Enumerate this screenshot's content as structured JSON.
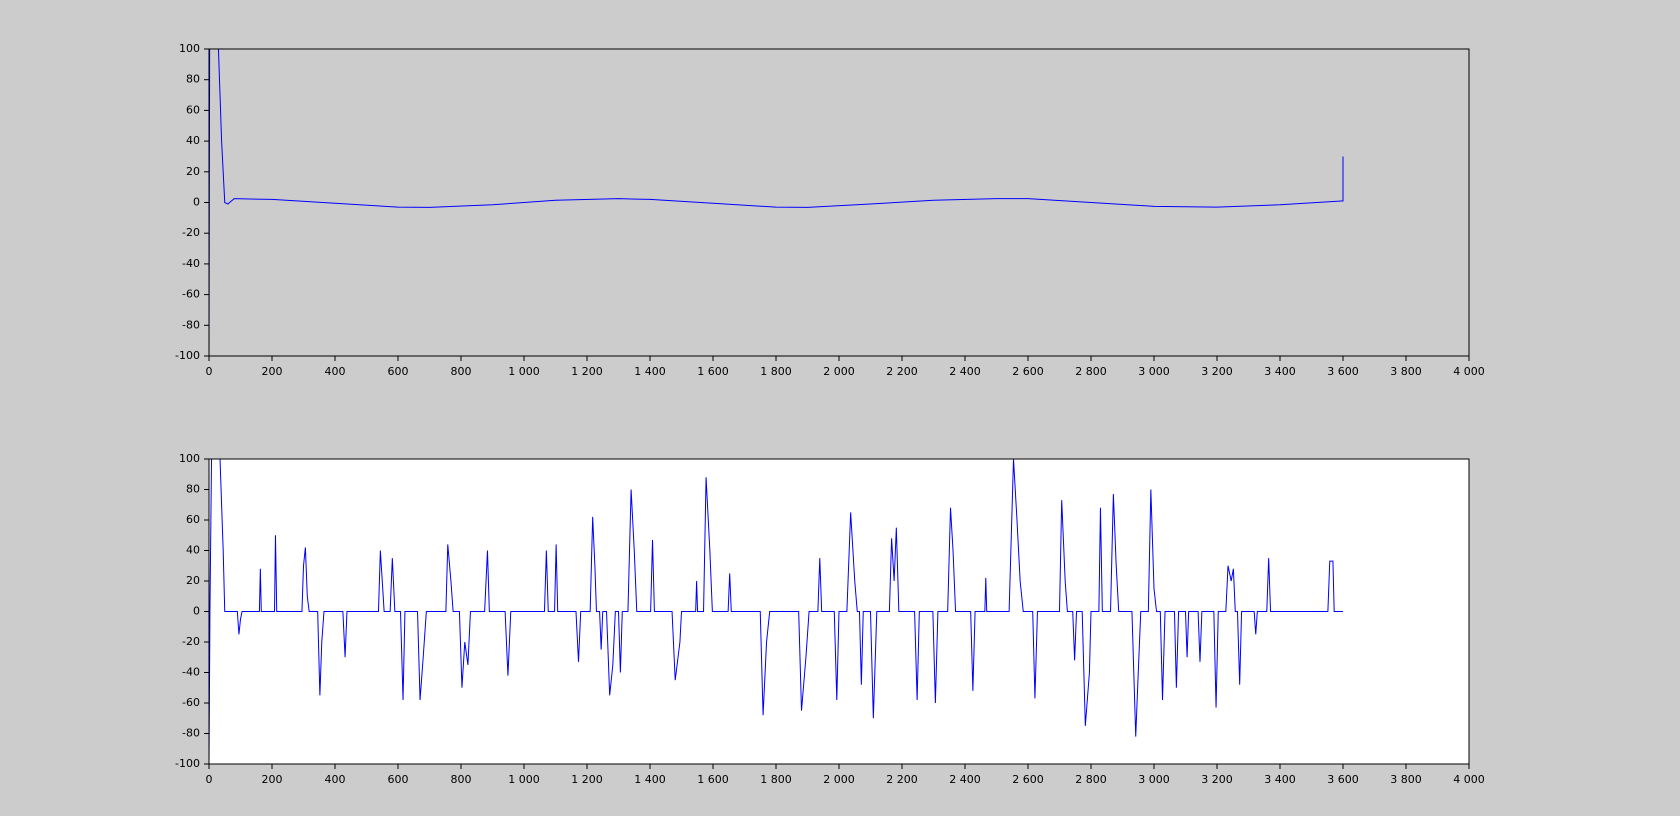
{
  "chart_data": [
    {
      "type": "line",
      "color": "#0000ff",
      "background": "#cccccc",
      "x": [
        0,
        2,
        30,
        40,
        50,
        60,
        80,
        200,
        400,
        600,
        700,
        900,
        1100,
        1300,
        1400,
        1600,
        1800,
        1900,
        2100,
        2300,
        2500,
        2600,
        2800,
        3000,
        3200,
        3400,
        3595,
        3600,
        3600
      ],
      "values": [
        -100,
        100,
        100,
        40,
        0,
        -1,
        2.5,
        2,
        -0.5,
        -3,
        -3.2,
        -1.5,
        1.5,
        2.5,
        2,
        -0.5,
        -3,
        -3.2,
        -1,
        1.5,
        2.5,
        2.5,
        0,
        -2.5,
        -3,
        -1.5,
        1,
        1,
        30
      ],
      "xlim": [
        0,
        4000
      ],
      "xticks": [
        0,
        200,
        400,
        600,
        800,
        {
          "value": 1000,
          "label": "1 000"
        },
        {
          "value": 1200,
          "label": "1 200"
        },
        {
          "value": 1400,
          "label": "1 400"
        },
        {
          "value": 1600,
          "label": "1 600"
        },
        {
          "value": 1800,
          "label": "1 800"
        },
        {
          "value": 2000,
          "label": "2 000"
        },
        {
          "value": 2200,
          "label": "2 200"
        },
        {
          "value": 2400,
          "label": "2 400"
        },
        {
          "value": 2600,
          "label": "2 600"
        },
        {
          "value": 2800,
          "label": "2 800"
        },
        {
          "value": 3000,
          "label": "3 000"
        },
        {
          "value": 3200,
          "label": "3 200"
        },
        {
          "value": 3400,
          "label": "3 400"
        },
        {
          "value": 3600,
          "label": "3 600"
        },
        {
          "value": 3800,
          "label": "3 800"
        },
        {
          "value": 4000,
          "label": "4 000"
        }
      ],
      "ylim": [
        -100,
        100
      ],
      "yticks": [
        -100,
        -80,
        -60,
        -40,
        -20,
        0,
        20,
        40,
        60,
        80,
        100
      ]
    },
    {
      "type": "line",
      "color": "#0000ff",
      "background": "#ffffff",
      "x": [
        0,
        3,
        8,
        35,
        45,
        50,
        90,
        95,
        100,
        105,
        160,
        163,
        166,
        208,
        211,
        215,
        295,
        300,
        306,
        312,
        318,
        345,
        352,
        358,
        365,
        425,
        432,
        438,
        538,
        544,
        550,
        556,
        575,
        582,
        590,
        608,
        616,
        622,
        662,
        670,
        680,
        690,
        752,
        758,
        768,
        775,
        795,
        803,
        812,
        822,
        830,
        875,
        884,
        890,
        940,
        949,
        958,
        1065,
        1071,
        1077,
        1097,
        1102,
        1107,
        1165,
        1173,
        1180,
        1210,
        1218,
        1225,
        1230,
        1240,
        1245,
        1250,
        1262,
        1272,
        1282,
        1290,
        1300,
        1306,
        1312,
        1330,
        1340,
        1350,
        1358,
        1402,
        1408,
        1414,
        1470,
        1480,
        1495,
        1500,
        1545,
        1548,
        1551,
        1570,
        1578,
        1590,
        1598,
        1648,
        1653,
        1658,
        1750,
        1759,
        1770,
        1780,
        1872,
        1881,
        1895,
        1905,
        1933,
        1939,
        1945,
        1985,
        1993,
        2000,
        2025,
        2037,
        2050,
        2058,
        2065,
        2071,
        2077,
        2100,
        2109,
        2120,
        2160,
        2167,
        2175,
        2182,
        2190,
        2240,
        2248,
        2255,
        2298,
        2306,
        2314,
        2345,
        2354,
        2362,
        2370,
        2418,
        2425,
        2432,
        2463,
        2466,
        2469,
        2540,
        2554,
        2565,
        2575,
        2585,
        2615,
        2622,
        2630,
        2700,
        2707,
        2718,
        2725,
        2742,
        2748,
        2754,
        2772,
        2782,
        2795,
        2800,
        2825,
        2830,
        2836,
        2862,
        2871,
        2880,
        2888,
        2930,
        2942,
        2950,
        2958,
        2982,
        2990,
        3000,
        3008,
        3020,
        3027,
        3035,
        3065,
        3071,
        3078,
        3100,
        3105,
        3110,
        3140,
        3146,
        3152,
        3190,
        3197,
        3204,
        3228,
        3235,
        3245,
        3252,
        3258,
        3265,
        3272,
        3278,
        3318,
        3323,
        3328,
        3358,
        3364,
        3370,
        3552,
        3558,
        3568,
        3572,
        3600
      ],
      "values": [
        -100,
        0,
        100,
        100,
        40,
        0,
        0,
        -15,
        -5,
        0,
        0,
        28,
        0,
        0,
        50,
        0,
        0,
        30,
        42,
        10,
        0,
        0,
        -55,
        -20,
        0,
        0,
        -30,
        0,
        0,
        40,
        20,
        0,
        0,
        35,
        0,
        0,
        -58,
        0,
        0,
        -58,
        -30,
        0,
        0,
        44,
        20,
        0,
        0,
        -50,
        -20,
        -35,
        0,
        0,
        40,
        0,
        0,
        -42,
        0,
        0,
        40,
        0,
        0,
        44,
        0,
        0,
        -33,
        0,
        0,
        62,
        30,
        0,
        0,
        -25,
        0,
        0,
        -55,
        -35,
        0,
        0,
        -40,
        0,
        0,
        80,
        40,
        0,
        0,
        47,
        0,
        0,
        -45,
        -20,
        0,
        0,
        20,
        0,
        0,
        88,
        40,
        0,
        0,
        25,
        0,
        0,
        -68,
        -20,
        0,
        0,
        -65,
        -30,
        0,
        0,
        35,
        0,
        0,
        -58,
        0,
        0,
        65,
        20,
        0,
        0,
        -48,
        0,
        0,
        -70,
        0,
        0,
        48,
        20,
        55,
        0,
        0,
        -58,
        0,
        0,
        -60,
        0,
        0,
        68,
        40,
        0,
        0,
        -52,
        0,
        0,
        22,
        0,
        0,
        100,
        60,
        20,
        0,
        0,
        -57,
        0,
        0,
        73,
        20,
        0,
        0,
        -32,
        0,
        0,
        -75,
        -40,
        0,
        0,
        68,
        0,
        0,
        77,
        30,
        0,
        0,
        -82,
        -40,
        0,
        0,
        80,
        15,
        0,
        0,
        -58,
        0,
        0,
        -50,
        0,
        0,
        -30,
        0,
        0,
        -33,
        0,
        0,
        -63,
        0,
        0,
        30,
        20,
        28,
        0,
        0,
        -48,
        0,
        0,
        -15,
        0,
        0,
        35,
        0,
        0,
        33,
        33,
        0,
        0
      ],
      "xlim": [
        0,
        4000
      ],
      "xticks": [
        0,
        200,
        400,
        600,
        800,
        {
          "value": 1000,
          "label": "1 000"
        },
        {
          "value": 1200,
          "label": "1 200"
        },
        {
          "value": 1400,
          "label": "1 400"
        },
        {
          "value": 1600,
          "label": "1 600"
        },
        {
          "value": 1800,
          "label": "1 800"
        },
        {
          "value": 2000,
          "label": "2 000"
        },
        {
          "value": 2200,
          "label": "2 200"
        },
        {
          "value": 2400,
          "label": "2 400"
        },
        {
          "value": 2600,
          "label": "2 600"
        },
        {
          "value": 2800,
          "label": "2 800"
        },
        {
          "value": 3000,
          "label": "3 000"
        },
        {
          "value": 3200,
          "label": "3 200"
        },
        {
          "value": 3400,
          "label": "3 400"
        },
        {
          "value": 3600,
          "label": "3 600"
        },
        {
          "value": 3800,
          "label": "3 800"
        },
        {
          "value": 4000,
          "label": "4 000"
        }
      ],
      "ylim": [
        -100,
        100
      ],
      "yticks": [
        -100,
        -80,
        -60,
        -40,
        -20,
        0,
        20,
        40,
        60,
        80,
        100
      ]
    }
  ]
}
